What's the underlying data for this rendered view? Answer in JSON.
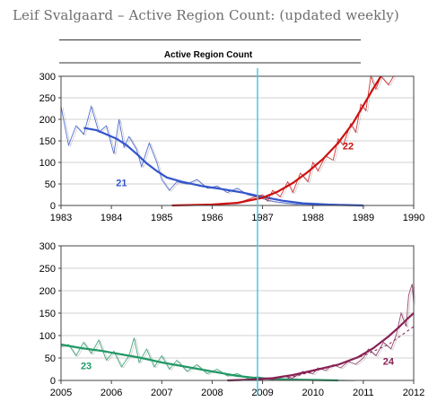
{
  "page": {
    "title": "Leif Svalgaard – Active Region Count: (updated weekly)"
  },
  "chart_data": [
    {
      "type": "line",
      "title": "Active Region Count",
      "xlim": [
        1983,
        1990
      ],
      "ylim": [
        0,
        300
      ],
      "xticks": [
        1983,
        1984,
        1985,
        1986,
        1987,
        1988,
        1989,
        1990
      ],
      "yticks": [
        0,
        50,
        100,
        150,
        200,
        250,
        300
      ],
      "grid": true,
      "marker_line_x": 1986.9,
      "series": [
        {
          "name": "21",
          "color": "#3355cc",
          "raw": [
            [
              1983.0,
              230
            ],
            [
              1983.15,
              140
            ],
            [
              1983.3,
              185
            ],
            [
              1983.45,
              165
            ],
            [
              1983.6,
              230
            ],
            [
              1983.75,
              170
            ],
            [
              1983.9,
              185
            ],
            [
              1984.05,
              120
            ],
            [
              1984.15,
              200
            ],
            [
              1984.25,
              135
            ],
            [
              1984.35,
              160
            ],
            [
              1984.5,
              130
            ],
            [
              1984.6,
              90
            ],
            [
              1984.75,
              145
            ],
            [
              1984.9,
              100
            ],
            [
              1985.0,
              60
            ],
            [
              1985.15,
              35
            ],
            [
              1985.3,
              55
            ],
            [
              1985.5,
              50
            ],
            [
              1985.7,
              60
            ],
            [
              1985.9,
              40
            ],
            [
              1986.1,
              45
            ],
            [
              1986.3,
              30
            ],
            [
              1986.5,
              40
            ],
            [
              1986.7,
              25
            ],
            [
              1986.9,
              20
            ],
            [
              1987.1,
              12
            ],
            [
              1987.3,
              8
            ],
            [
              1987.5,
              5
            ],
            [
              1987.7,
              3
            ],
            [
              1988.0,
              2
            ],
            [
              1988.5,
              1
            ],
            [
              1989.0,
              0
            ]
          ],
          "smoothed": [
            [
              1983.45,
              180
            ],
            [
              1983.7,
              175
            ],
            [
              1983.9,
              165
            ],
            [
              1984.1,
              155
            ],
            [
              1984.3,
              140
            ],
            [
              1984.5,
              120
            ],
            [
              1984.7,
              98
            ],
            [
              1984.9,
              80
            ],
            [
              1985.1,
              65
            ],
            [
              1985.4,
              55
            ],
            [
              1985.8,
              45
            ],
            [
              1986.2,
              38
            ],
            [
              1986.6,
              30
            ],
            [
              1987.0,
              20
            ],
            [
              1987.4,
              11
            ],
            [
              1987.8,
              5
            ],
            [
              1988.3,
              2
            ],
            [
              1989.0,
              0
            ]
          ]
        },
        {
          "name": "22",
          "color": "#cc1111",
          "raw": [
            [
              1985.2,
              1
            ],
            [
              1986.0,
              2
            ],
            [
              1986.5,
              5
            ],
            [
              1986.8,
              18
            ],
            [
              1987.0,
              25
            ],
            [
              1987.1,
              10
            ],
            [
              1987.2,
              35
            ],
            [
              1987.35,
              20
            ],
            [
              1987.5,
              55
            ],
            [
              1987.6,
              30
            ],
            [
              1987.75,
              75
            ],
            [
              1987.9,
              55
            ],
            [
              1988.0,
              100
            ],
            [
              1988.1,
              80
            ],
            [
              1988.25,
              115
            ],
            [
              1988.4,
              105
            ],
            [
              1988.5,
              155
            ],
            [
              1988.6,
              140
            ],
            [
              1988.75,
              190
            ],
            [
              1988.85,
              170
            ],
            [
              1988.95,
              235
            ],
            [
              1989.05,
              220
            ],
            [
              1989.15,
              300
            ],
            [
              1989.25,
              270
            ],
            [
              1989.35,
              300
            ],
            [
              1989.5,
              280
            ],
            [
              1989.6,
              300
            ]
          ],
          "smoothed": [
            [
              1985.2,
              0
            ],
            [
              1986.0,
              2
            ],
            [
              1986.5,
              6
            ],
            [
              1987.0,
              18
            ],
            [
              1987.3,
              32
            ],
            [
              1987.6,
              52
            ],
            [
              1987.9,
              78
            ],
            [
              1988.2,
              108
            ],
            [
              1988.5,
              145
            ],
            [
              1988.8,
              192
            ],
            [
              1989.0,
              232
            ],
            [
              1989.2,
              272
            ],
            [
              1989.35,
              300
            ]
          ]
        }
      ]
    },
    {
      "type": "line",
      "xlim": [
        2005,
        2012
      ],
      "ylim": [
        0,
        300
      ],
      "xticks": [
        2005,
        2006,
        2007,
        2008,
        2009,
        2010,
        2011,
        2012
      ],
      "yticks": [
        0,
        50,
        100,
        150,
        200,
        250,
        300
      ],
      "grid": true,
      "marker_line_x": 2008.9,
      "series": [
        {
          "name": "23",
          "color": "#229966",
          "raw": [
            [
              2005.0,
              75
            ],
            [
              2005.15,
              80
            ],
            [
              2005.3,
              55
            ],
            [
              2005.45,
              85
            ],
            [
              2005.6,
              60
            ],
            [
              2005.75,
              90
            ],
            [
              2005.9,
              45
            ],
            [
              2006.05,
              65
            ],
            [
              2006.2,
              30
            ],
            [
              2006.35,
              55
            ],
            [
              2006.45,
              95
            ],
            [
              2006.55,
              40
            ],
            [
              2006.7,
              70
            ],
            [
              2006.85,
              30
            ],
            [
              2007.0,
              55
            ],
            [
              2007.15,
              25
            ],
            [
              2007.3,
              45
            ],
            [
              2007.5,
              20
            ],
            [
              2007.7,
              35
            ],
            [
              2007.9,
              15
            ],
            [
              2008.1,
              25
            ],
            [
              2008.3,
              10
            ],
            [
              2008.5,
              15
            ],
            [
              2008.7,
              5
            ],
            [
              2008.9,
              8
            ],
            [
              2009.2,
              3
            ],
            [
              2009.6,
              2
            ],
            [
              2010.2,
              1
            ],
            [
              2010.8,
              0
            ]
          ],
          "smoothed": [
            [
              2005.0,
              80
            ],
            [
              2005.4,
              72
            ],
            [
              2005.8,
              66
            ],
            [
              2006.2,
              58
            ],
            [
              2006.6,
              50
            ],
            [
              2007.0,
              40
            ],
            [
              2007.5,
              30
            ],
            [
              2008.0,
              20
            ],
            [
              2008.5,
              10
            ],
            [
              2008.9,
              5
            ],
            [
              2009.5,
              2
            ],
            [
              2010.5,
              0
            ]
          ]
        },
        {
          "name": "24",
          "color": "#882255",
          "raw": [
            [
              2008.3,
              0
            ],
            [
              2008.7,
              2
            ],
            [
              2009.0,
              5
            ],
            [
              2009.2,
              2
            ],
            [
              2009.4,
              10
            ],
            [
              2009.6,
              5
            ],
            [
              2009.8,
              20
            ],
            [
              2010.0,
              15
            ],
            [
              2010.1,
              28
            ],
            [
              2010.25,
              22
            ],
            [
              2010.4,
              35
            ],
            [
              2010.55,
              28
            ],
            [
              2010.7,
              42
            ],
            [
              2010.85,
              36
            ],
            [
              2011.0,
              50
            ],
            [
              2011.1,
              70
            ],
            [
              2011.25,
              55
            ],
            [
              2011.4,
              85
            ],
            [
              2011.55,
              70
            ],
            [
              2011.65,
              100
            ],
            [
              2011.75,
              150
            ],
            [
              2011.85,
              120
            ],
            [
              2011.9,
              190
            ],
            [
              2011.97,
              215
            ],
            [
              2012.0,
              170
            ]
          ],
          "smoothed": [
            [
              2008.3,
              0
            ],
            [
              2008.8,
              2
            ],
            [
              2009.2,
              5
            ],
            [
              2009.6,
              12
            ],
            [
              2010.0,
              22
            ],
            [
              2010.5,
              35
            ],
            [
              2010.9,
              52
            ],
            [
              2011.2,
              72
            ],
            [
              2011.5,
              98
            ],
            [
              2011.7,
              118
            ],
            [
              2011.9,
              140
            ],
            [
              2012.0,
              150
            ]
          ],
          "projection": [
            [
              2009.5,
              5
            ],
            [
              2010.0,
              20
            ],
            [
              2010.5,
              35
            ],
            [
              2011.0,
              55
            ],
            [
              2011.5,
              80
            ],
            [
              2012.0,
              120
            ]
          ]
        }
      ]
    }
  ]
}
